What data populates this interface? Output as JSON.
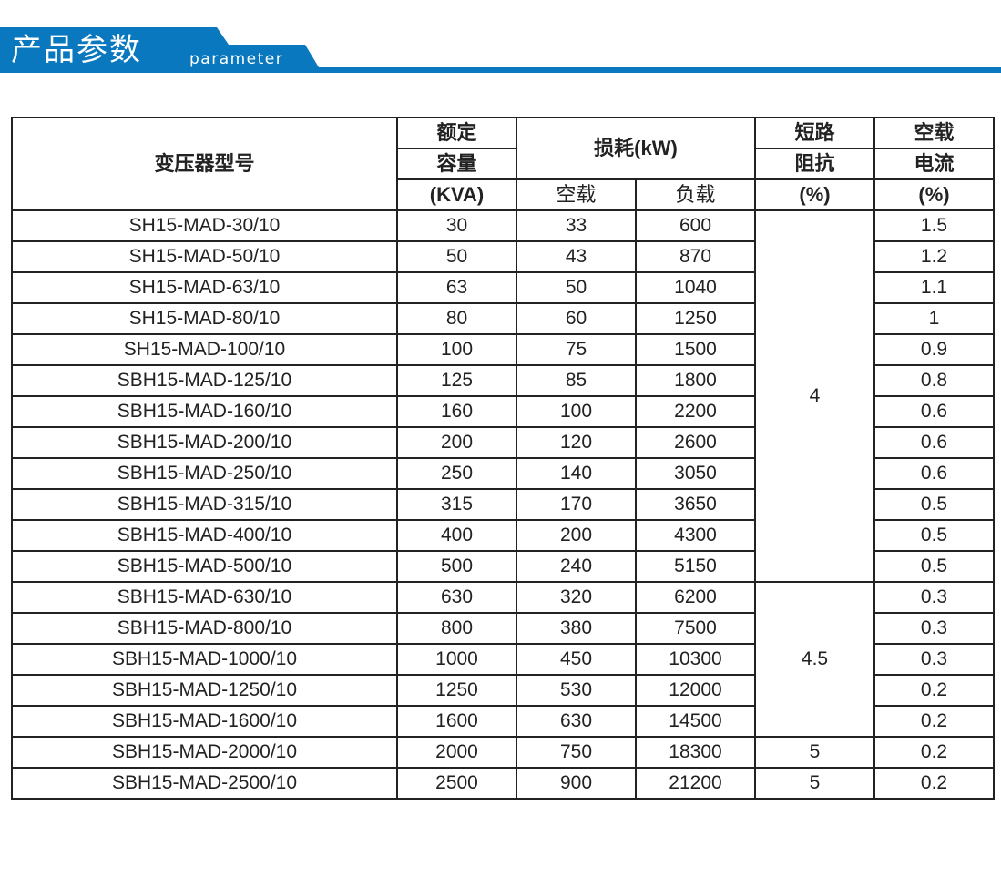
{
  "banner": {
    "title": "产品参数",
    "subtitle": "parameter",
    "color": "#0a78be"
  },
  "table": {
    "headers": {
      "model": "变压器型号",
      "capacity_1": "额定",
      "capacity_2": "容量",
      "capacity_3": "(KVA)",
      "loss": "损耗(kW)",
      "loss_noload": "空载",
      "loss_load": "负载",
      "impedance_1": "短路",
      "impedance_2": "阻抗",
      "impedance_3": "(%)",
      "current_1": "空载",
      "current_2": "电流",
      "current_3": "(%)"
    },
    "rows": [
      {
        "model": "SH15-MAD-30/10",
        "capacity": "30",
        "noload": "33",
        "load": "600",
        "current": "1.5"
      },
      {
        "model": "SH15-MAD-50/10",
        "capacity": "50",
        "noload": "43",
        "load": "870",
        "current": "1.2"
      },
      {
        "model": "SH15-MAD-63/10",
        "capacity": "63",
        "noload": "50",
        "load": "1040",
        "current": "1.1"
      },
      {
        "model": "SH15-MAD-80/10",
        "capacity": "80",
        "noload": "60",
        "load": "1250",
        "current": "1"
      },
      {
        "model": "SH15-MAD-100/10",
        "capacity": "100",
        "noload": "75",
        "load": "1500",
        "current": "0.9"
      },
      {
        "model": "SBH15-MAD-125/10",
        "capacity": "125",
        "noload": "85",
        "load": "1800",
        "current": "0.8"
      },
      {
        "model": "SBH15-MAD-160/10",
        "capacity": "160",
        "noload": "100",
        "load": "2200",
        "current": "0.6"
      },
      {
        "model": "SBH15-MAD-200/10",
        "capacity": "200",
        "noload": "120",
        "load": "2600",
        "current": "0.6"
      },
      {
        "model": "SBH15-MAD-250/10",
        "capacity": "250",
        "noload": "140",
        "load": "3050",
        "current": "0.6"
      },
      {
        "model": "SBH15-MAD-315/10",
        "capacity": "315",
        "noload": "170",
        "load": "3650",
        "current": "0.5"
      },
      {
        "model": "SBH15-MAD-400/10",
        "capacity": "400",
        "noload": "200",
        "load": "4300",
        "current": "0.5"
      },
      {
        "model": "SBH15-MAD-500/10",
        "capacity": "500",
        "noload": "240",
        "load": "5150",
        "current": "0.5"
      },
      {
        "model": "SBH15-MAD-630/10",
        "capacity": "630",
        "noload": "320",
        "load": "6200",
        "current": "0.3"
      },
      {
        "model": "SBH15-MAD-800/10",
        "capacity": "800",
        "noload": "380",
        "load": "7500",
        "current": "0.3"
      },
      {
        "model": "SBH15-MAD-1000/10",
        "capacity": "1000",
        "noload": "450",
        "load": "10300",
        "current": "0.3"
      },
      {
        "model": "SBH15-MAD-1250/10",
        "capacity": "1250",
        "noload": "530",
        "load": "12000",
        "current": "0.2"
      },
      {
        "model": "SBH15-MAD-1600/10",
        "capacity": "1600",
        "noload": "630",
        "load": "14500",
        "current": "0.2"
      },
      {
        "model": "SBH15-MAD-2000/10",
        "capacity": "2000",
        "noload": "750",
        "load": "18300",
        "current": "0.2"
      },
      {
        "model": "SBH15-MAD-2500/10",
        "capacity": "2500",
        "noload": "900",
        "load": "21200",
        "current": "0.2"
      }
    ],
    "impedance_groups": [
      {
        "value": "4",
        "rows": 12
      },
      {
        "value": "4.5",
        "rows": 5
      },
      {
        "value": "5",
        "rows": 1
      },
      {
        "value": "5",
        "rows": 1
      }
    ]
  }
}
